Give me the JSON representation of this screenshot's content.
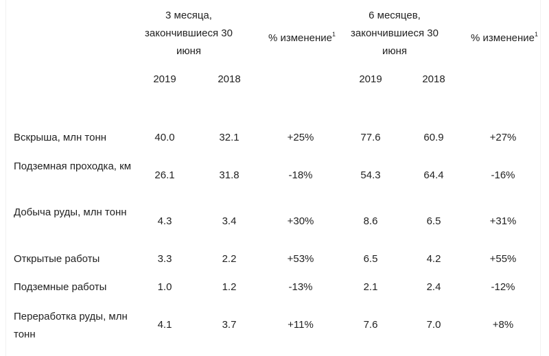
{
  "header": {
    "group1": "3 месяца, закончившиеся 30 июня",
    "change1": "% изменение",
    "change1_sup": "1",
    "group2": "6 месяцев, закончившиеся 30 июня",
    "change2": "% изменение",
    "change2_sup": "1",
    "years": [
      "2019",
      "2018",
      "2019",
      "2018"
    ]
  },
  "rows": [
    {
      "label": "Вскрыша, млн тонн",
      "values": [
        "40.0",
        "32.1",
        "+25%",
        "77.6",
        "60.9",
        "+27%"
      ]
    },
    {
      "label": "Подземная проходка, км",
      "values": [
        "26.1",
        "31.8",
        "-18%",
        "54.3",
        "64.4",
        "-16%"
      ]
    },
    {
      "label": "Добыча руды, млн тонн",
      "values": [
        "4.3",
        "3.4",
        "+30%",
        "8.6",
        "6.5",
        "+31%"
      ]
    },
    {
      "label": "Открытые работы",
      "values": [
        "3.3",
        "2.2",
        "+53%",
        "6.5",
        "4.2",
        "+55%"
      ]
    },
    {
      "label": "Подземные работы",
      "values": [
        "1.0",
        "1.2",
        "-13%",
        "2.1",
        "2.4",
        "-12%"
      ]
    },
    {
      "label": "Переработка руды, млн тонн",
      "values": [
        "4.1",
        "3.7",
        "+11%",
        "7.6",
        "7.0",
        "+8%"
      ]
    }
  ]
}
